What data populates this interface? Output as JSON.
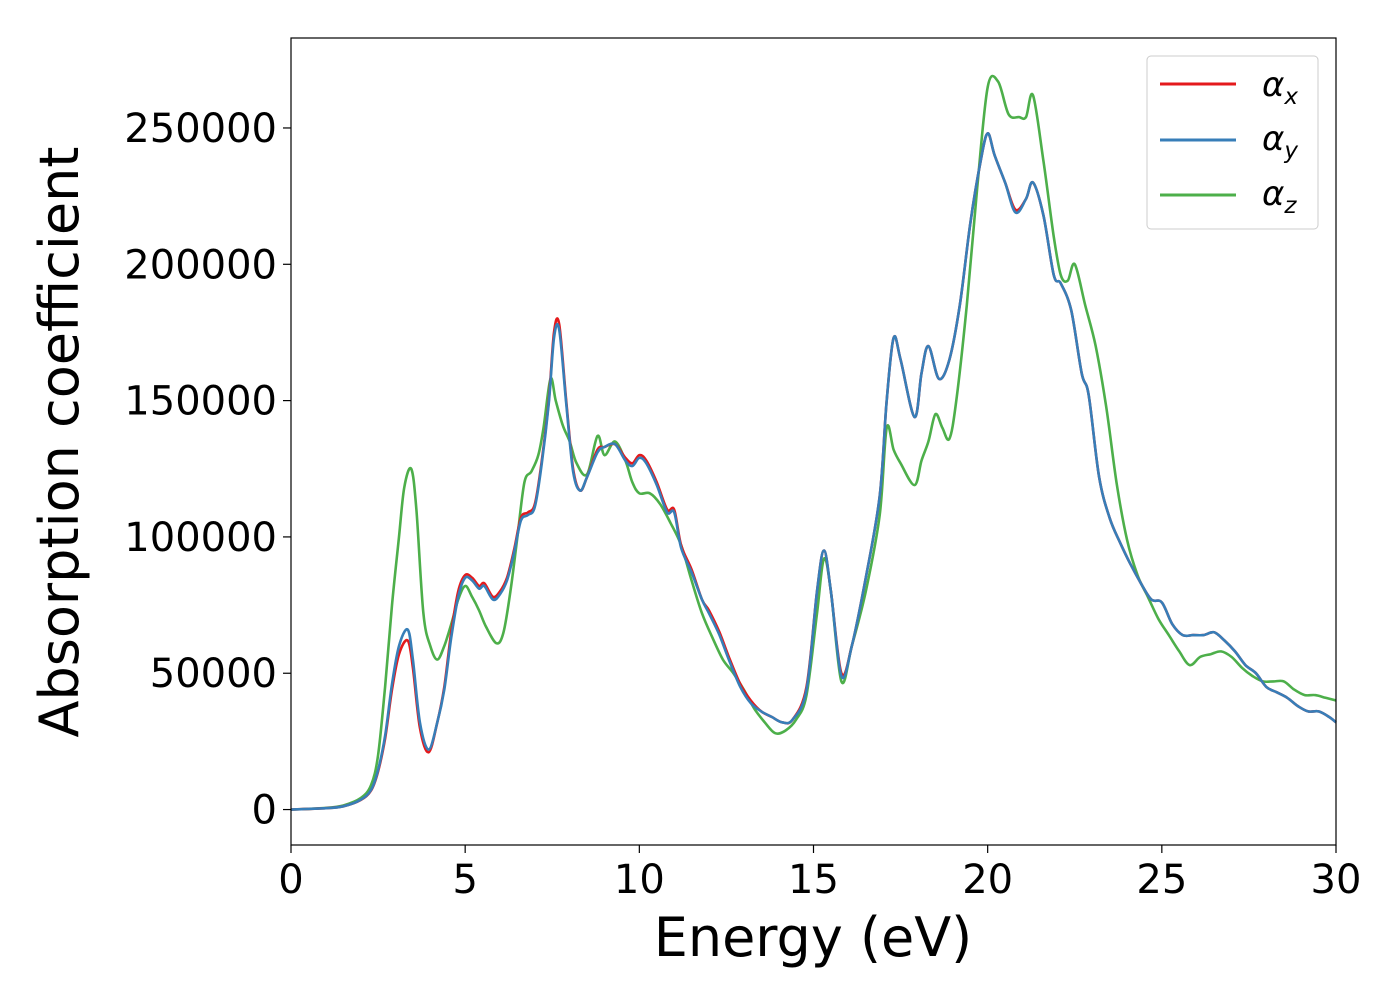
{
  "chart_data": {
    "type": "line",
    "title": "",
    "xlabel": "Energy (eV)",
    "ylabel": "Absorption coefficient",
    "xlim": [
      0,
      30
    ],
    "ylim": [
      -13000,
      283000
    ],
    "xticks": [
      0,
      5,
      10,
      15,
      20,
      25,
      30
    ],
    "yticks": [
      0,
      50000,
      100000,
      150000,
      200000,
      250000
    ],
    "grid": false,
    "legend_position": "top-right",
    "legend": [
      {
        "label": "α",
        "sub": "x"
      },
      {
        "label": "α",
        "sub": "y"
      },
      {
        "label": "α",
        "sub": "z"
      }
    ],
    "colors": {
      "alpha_x": "#e41a1c",
      "alpha_y": "#377eb8",
      "alpha_z": "#4daf4a"
    },
    "series": [
      {
        "name": "αx",
        "x": [
          0,
          1,
          1.5,
          2,
          2.3,
          2.5,
          2.7,
          2.9,
          3.1,
          3.35,
          3.5,
          3.7,
          3.95,
          4.2,
          4.4,
          4.6,
          4.8,
          5,
          5.2,
          5.4,
          5.55,
          5.8,
          6,
          6.2,
          6.4,
          6.6,
          6.8,
          7,
          7.2,
          7.4,
          7.55,
          7.7,
          7.9,
          8.1,
          8.3,
          8.5,
          8.8,
          9,
          9.3,
          9.6,
          9.8,
          10,
          10.2,
          10.5,
          10.8,
          11,
          11.2,
          11.5,
          11.8,
          12,
          12.3,
          12.6,
          12.9,
          13.2,
          13.5,
          13.8,
          14.1,
          14.4,
          14.8,
          15.1,
          15.3,
          15.5,
          15.8,
          16.1,
          16.5,
          16.9,
          17.1,
          17.3,
          17.5,
          17.9,
          18.1,
          18.3,
          18.6,
          18.9,
          19.2,
          19.5,
          19.8,
          20,
          20.2,
          20.5,
          20.8,
          21.1,
          21.3,
          21.6,
          21.9,
          22.1,
          22.4,
          22.7,
          22.9,
          23.2,
          23.5,
          23.8,
          24.1,
          24.4,
          24.7,
          25,
          25.3,
          25.6,
          25.9,
          26.2,
          26.5,
          26.8,
          27.1,
          27.4,
          27.7,
          28,
          28.3,
          28.6,
          28.9,
          29.2,
          29.5,
          29.8,
          30
        ],
        "y": [
          0,
          500,
          1200,
          3500,
          7000,
          14000,
          26000,
          44000,
          57000,
          62000,
          52000,
          30000,
          21000,
          32000,
          45000,
          65000,
          80000,
          86000,
          85000,
          82000,
          83000,
          78000,
          80000,
          85000,
          95000,
          107000,
          109000,
          112000,
          128000,
          150000,
          175000,
          178000,
          150000,
          125000,
          117000,
          122000,
          132000,
          133000,
          134000,
          129000,
          127000,
          130000,
          128000,
          120000,
          110000,
          110000,
          97000,
          88000,
          77000,
          73000,
          65000,
          55000,
          46000,
          40000,
          36000,
          34000,
          32000,
          33000,
          45000,
          80000,
          95000,
          80000,
          50000,
          60000,
          85000,
          115000,
          150000,
          173000,
          165000,
          144000,
          160000,
          170000,
          158000,
          165000,
          185000,
          215000,
          238000,
          248000,
          240000,
          230000,
          220000,
          224000,
          230000,
          218000,
          196000,
          193000,
          183000,
          160000,
          152000,
          122000,
          107000,
          98000,
          90000,
          83000,
          77000,
          76000,
          68000,
          64000,
          64000,
          64000,
          65000,
          62000,
          58000,
          53000,
          50000,
          45000,
          43000,
          41000,
          38000,
          36000,
          36000,
          34000,
          32000
        ]
      },
      {
        "name": "αy",
        "x": [
          0,
          1,
          1.5,
          2,
          2.3,
          2.5,
          2.7,
          2.9,
          3.1,
          3.35,
          3.5,
          3.7,
          3.95,
          4.2,
          4.4,
          4.6,
          4.8,
          5,
          5.2,
          5.4,
          5.55,
          5.8,
          6,
          6.2,
          6.4,
          6.6,
          6.8,
          7,
          7.2,
          7.4,
          7.55,
          7.7,
          7.9,
          8.1,
          8.3,
          8.5,
          8.8,
          9,
          9.3,
          9.6,
          9.8,
          10,
          10.2,
          10.5,
          10.8,
          11,
          11.2,
          11.5,
          11.8,
          12,
          12.3,
          12.6,
          12.9,
          13.2,
          13.5,
          13.8,
          14.1,
          14.4,
          14.8,
          15.1,
          15.3,
          15.5,
          15.8,
          16.1,
          16.5,
          16.9,
          17.1,
          17.3,
          17.5,
          17.9,
          18.1,
          18.3,
          18.6,
          18.9,
          19.2,
          19.5,
          19.8,
          20,
          20.2,
          20.5,
          20.8,
          21.1,
          21.3,
          21.6,
          21.9,
          22.1,
          22.4,
          22.7,
          22.9,
          23.2,
          23.5,
          23.8,
          24.1,
          24.4,
          24.7,
          25,
          25.3,
          25.6,
          25.9,
          26.2,
          26.5,
          26.8,
          27.1,
          27.4,
          27.7,
          28,
          28.3,
          28.6,
          28.9,
          29.2,
          29.5,
          29.8,
          30
        ],
        "y": [
          0,
          500,
          1200,
          3600,
          7200,
          14500,
          27000,
          46000,
          60000,
          66000,
          55000,
          32000,
          22000,
          32000,
          44000,
          63000,
          78000,
          85000,
          84000,
          81000,
          82000,
          77000,
          79000,
          84000,
          94000,
          106000,
          108000,
          111000,
          127000,
          149000,
          173000,
          176000,
          149000,
          124000,
          117000,
          122000,
          131000,
          133000,
          134000,
          128000,
          126000,
          129000,
          127000,
          119000,
          109000,
          109000,
          96000,
          87000,
          77000,
          72000,
          64000,
          54000,
          45000,
          39000,
          36000,
          34000,
          32000,
          33000,
          44000,
          80000,
          95000,
          80000,
          49000,
          60000,
          85000,
          115000,
          150000,
          173000,
          165000,
          144000,
          160000,
          170000,
          158000,
          165000,
          185000,
          215000,
          238000,
          248000,
          240000,
          230000,
          219000,
          224000,
          230000,
          218000,
          196000,
          193000,
          183000,
          160000,
          152000,
          122000,
          107000,
          98000,
          90000,
          83000,
          77000,
          76000,
          68000,
          64000,
          64000,
          64000,
          65000,
          62000,
          58000,
          53000,
          50000,
          45000,
          43000,
          41000,
          38000,
          36000,
          36000,
          34000,
          32000
        ]
      },
      {
        "name": "αz",
        "x": [
          0,
          1,
          1.5,
          2,
          2.3,
          2.5,
          2.7,
          2.9,
          3.1,
          3.25,
          3.45,
          3.6,
          3.8,
          4,
          4.2,
          4.4,
          4.6,
          4.8,
          5,
          5.2,
          5.4,
          5.6,
          5.9,
          6.1,
          6.3,
          6.5,
          6.7,
          6.9,
          7.1,
          7.25,
          7.45,
          7.6,
          7.8,
          8,
          8.2,
          8.5,
          8.8,
          9,
          9.3,
          9.6,
          9.8,
          10,
          10.3,
          10.6,
          10.9,
          11.2,
          11.5,
          11.8,
          12.1,
          12.4,
          12.7,
          13,
          13.3,
          13.6,
          13.9,
          14.2,
          14.5,
          14.8,
          15.1,
          15.3,
          15.5,
          15.8,
          16.1,
          16.5,
          16.9,
          17.1,
          17.3,
          17.5,
          17.9,
          18.1,
          18.3,
          18.5,
          18.7,
          18.9,
          19.1,
          19.4,
          19.7,
          20,
          20.3,
          20.6,
          20.9,
          21.1,
          21.3,
          21.6,
          21.9,
          22.1,
          22.3,
          22.5,
          22.8,
          23.1,
          23.4,
          23.7,
          24,
          24.3,
          24.6,
          24.9,
          25.2,
          25.5,
          25.8,
          26.1,
          26.4,
          26.7,
          27,
          27.3,
          27.6,
          27.9,
          28.2,
          28.5,
          28.8,
          29.1,
          29.4,
          29.7,
          30
        ],
        "y": [
          0,
          600,
          1500,
          4200,
          9000,
          20000,
          45000,
          75000,
          100000,
          118000,
          125000,
          110000,
          72000,
          60000,
          55000,
          60000,
          68000,
          77000,
          82000,
          78000,
          73000,
          67000,
          61000,
          65000,
          80000,
          100000,
          120000,
          124000,
          130000,
          140000,
          158000,
          150000,
          141000,
          135000,
          127000,
          123000,
          137000,
          130000,
          135000,
          128000,
          120000,
          116000,
          116000,
          112000,
          105000,
          97000,
          84000,
          72000,
          63000,
          55000,
          50000,
          44000,
          37000,
          32000,
          28000,
          29000,
          33000,
          42000,
          72000,
          92000,
          80000,
          47000,
          60000,
          80000,
          108000,
          140000,
          132000,
          127000,
          119000,
          128000,
          135000,
          145000,
          140000,
          136000,
          150000,
          185000,
          228000,
          265000,
          267000,
          255000,
          254000,
          254000,
          262000,
          238000,
          210000,
          196000,
          194000,
          200000,
          185000,
          170000,
          148000,
          120000,
          99000,
          86000,
          78000,
          70000,
          64000,
          58000,
          53000,
          56000,
          57000,
          58000,
          56000,
          52000,
          49000,
          47000,
          47000,
          47000,
          44000,
          42000,
          42000,
          41000,
          40000
        ]
      }
    ]
  }
}
